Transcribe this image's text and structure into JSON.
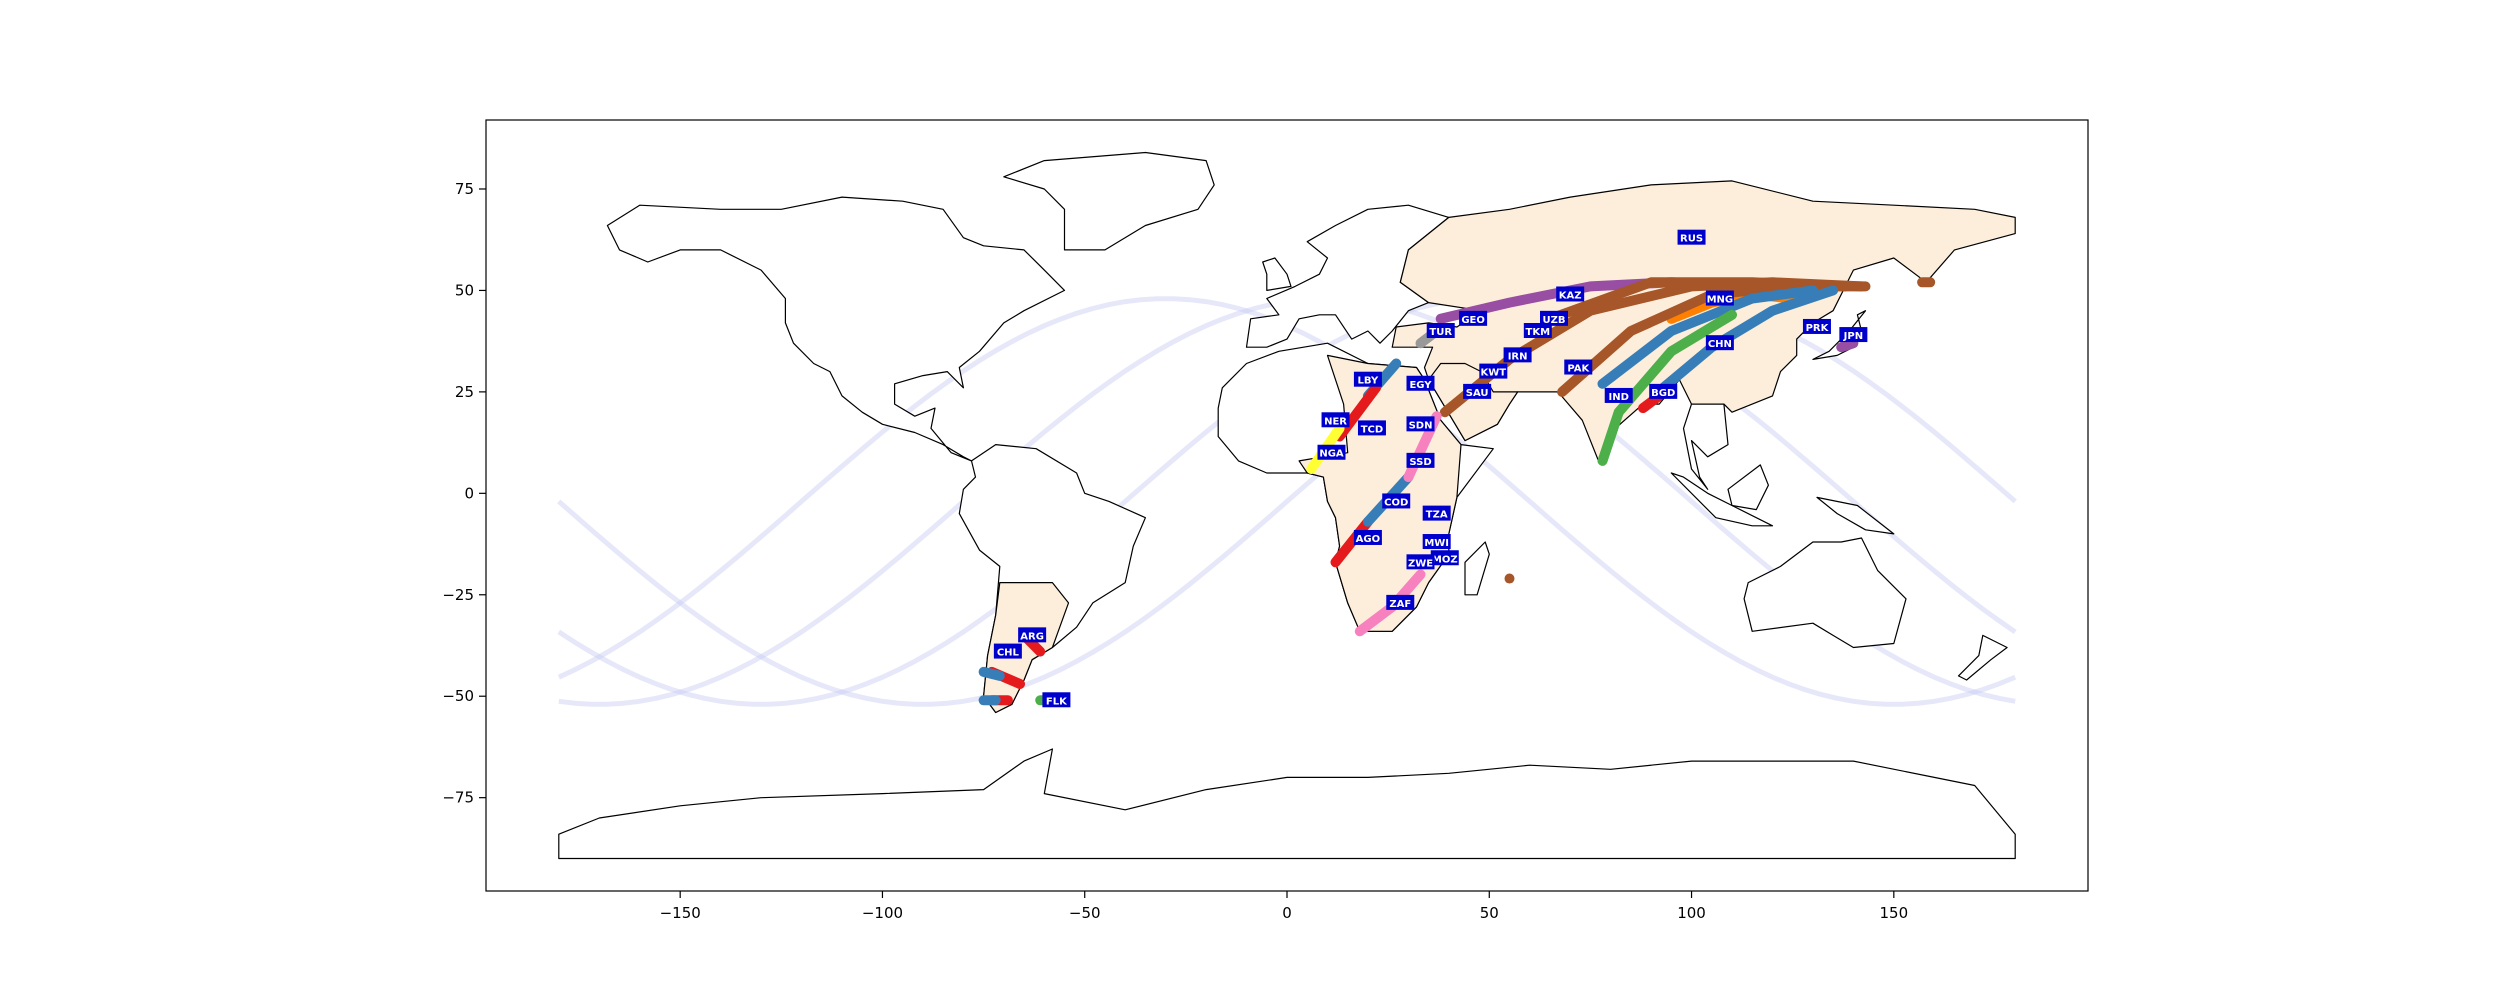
{
  "axes": {
    "x_range": [
      -198,
      198
    ],
    "y_range": [
      -98,
      92
    ],
    "x_ticks": [
      -150,
      -100,
      -50,
      0,
      50,
      100,
      150
    ],
    "y_ticks": [
      75,
      50,
      25,
      0,
      -25,
      -50,
      -75
    ],
    "x_tick_labels": [
      "−150",
      "−100",
      "−50",
      "0",
      "50",
      "100",
      "150"
    ],
    "y_tick_labels": [
      "75",
      "50",
      "25",
      "0",
      "−25",
      "−50",
      "−75"
    ]
  },
  "colors": {
    "highlight_land": "#fdeedc",
    "coastline": "#000000",
    "label_box": "#0000cc",
    "label_text": "#ffffff",
    "faint_arc": "#c8cdf5"
  },
  "country_labels": [
    {
      "code": "RUS",
      "lon": 100,
      "lat": 63
    },
    {
      "code": "KAZ",
      "lon": 70,
      "lat": 49
    },
    {
      "code": "MNG",
      "lon": 107,
      "lat": 48
    },
    {
      "code": "GEO",
      "lon": 46,
      "lat": 43
    },
    {
      "code": "UZB",
      "lon": 66,
      "lat": 43
    },
    {
      "code": "TKM",
      "lon": 62,
      "lat": 40
    },
    {
      "code": "TUR",
      "lon": 38,
      "lat": 40
    },
    {
      "code": "PRK",
      "lon": 131,
      "lat": 41
    },
    {
      "code": "JPN",
      "lon": 140,
      "lat": 39
    },
    {
      "code": "CHN",
      "lon": 107,
      "lat": 37
    },
    {
      "code": "IRN",
      "lon": 57,
      "lat": 34
    },
    {
      "code": "KWT",
      "lon": 51,
      "lat": 30
    },
    {
      "code": "PAK",
      "lon": 72,
      "lat": 31
    },
    {
      "code": "LBY",
      "lon": 20,
      "lat": 28
    },
    {
      "code": "EGY",
      "lon": 33,
      "lat": 27
    },
    {
      "code": "SAU",
      "lon": 47,
      "lat": 25
    },
    {
      "code": "IND",
      "lon": 82,
      "lat": 24
    },
    {
      "code": "BGD",
      "lon": 93,
      "lat": 25
    },
    {
      "code": "NER",
      "lon": 12,
      "lat": 18
    },
    {
      "code": "TCD",
      "lon": 21,
      "lat": 16
    },
    {
      "code": "SDN",
      "lon": 33,
      "lat": 17
    },
    {
      "code": "NGA",
      "lon": 11,
      "lat": 10
    },
    {
      "code": "SSD",
      "lon": 33,
      "lat": 8
    },
    {
      "code": "COD",
      "lon": 27,
      "lat": -2
    },
    {
      "code": "TZA",
      "lon": 37,
      "lat": -5
    },
    {
      "code": "AGO",
      "lon": 20,
      "lat": -11
    },
    {
      "code": "MWI",
      "lon": 37,
      "lat": -12
    },
    {
      "code": "MOZ",
      "lon": 39,
      "lat": -16
    },
    {
      "code": "ZWE",
      "lon": 33,
      "lat": -17
    },
    {
      "code": "ZAF",
      "lon": 28,
      "lat": -27
    },
    {
      "code": "ARG",
      "lon": -63,
      "lat": -35
    },
    {
      "code": "CHL",
      "lon": -69,
      "lat": -39
    },
    {
      "code": "FLK",
      "lon": -57,
      "lat": -51
    }
  ],
  "routes": [
    {
      "color": "#984ea3",
      "points": [
        [
          38,
          43
        ],
        [
          55,
          47
        ],
        [
          75,
          51
        ],
        [
          95,
          52
        ],
        [
          115,
          51
        ],
        [
          130,
          50
        ]
      ]
    },
    {
      "color": "#ff7f00",
      "points": [
        [
          95,
          43
        ],
        [
          105,
          47
        ],
        [
          115,
          49
        ],
        [
          125,
          48
        ]
      ]
    },
    {
      "color": "#a65628",
      "points": [
        [
          65,
          43
        ],
        [
          90,
          52
        ],
        [
          115,
          52
        ],
        [
          138,
          51
        ]
      ]
    },
    {
      "color": "#a65628",
      "points": [
        [
          39,
          20
        ],
        [
          55,
          33
        ],
        [
          75,
          45
        ],
        [
          100,
          51
        ],
        [
          120,
          52
        ],
        [
          142,
          51
        ]
      ]
    },
    {
      "color": "#a65628",
      "points": [
        [
          68,
          25
        ],
        [
          85,
          40
        ],
        [
          105,
          49
        ],
        [
          125,
          51
        ],
        [
          143,
          51
        ]
      ]
    },
    {
      "color": "#377eb8",
      "points": [
        [
          78,
          27
        ],
        [
          95,
          40
        ],
        [
          115,
          48
        ],
        [
          130,
          50
        ]
      ]
    },
    {
      "color": "#377eb8",
      "points": [
        [
          93,
          26
        ],
        [
          105,
          36
        ],
        [
          120,
          45
        ],
        [
          135,
          50
        ]
      ]
    },
    {
      "color": "#4daf4a",
      "points": [
        [
          78,
          8
        ],
        [
          82,
          20
        ],
        [
          95,
          35
        ],
        [
          110,
          44
        ]
      ]
    },
    {
      "color": "#e41a1c",
      "points": [
        [
          88,
          21
        ],
        [
          92,
          24
        ]
      ]
    },
    {
      "color": "#999999",
      "points": [
        [
          33,
          37
        ],
        [
          37,
          40
        ]
      ]
    },
    {
      "color": "#377eb8",
      "points": [
        [
          20,
          24
        ],
        [
          27,
          32
        ]
      ]
    },
    {
      "color": "#e41a1c",
      "points": [
        [
          13,
          14
        ],
        [
          22,
          26
        ]
      ]
    },
    {
      "color": "#ffff33",
      "points": [
        [
          6,
          6
        ],
        [
          13,
          16
        ]
      ]
    },
    {
      "color": "#e41a1c",
      "points": [
        [
          12,
          -17
        ],
        [
          20,
          -7
        ]
      ]
    },
    {
      "color": "#377eb8",
      "points": [
        [
          20,
          -7
        ],
        [
          30,
          4
        ]
      ]
    },
    {
      "color": "#f781bf",
      "points": [
        [
          30,
          4
        ],
        [
          37,
          19
        ]
      ]
    },
    {
      "color": "#f781bf",
      "points": [
        [
          18,
          -34
        ],
        [
          26,
          -28
        ],
        [
          33,
          -20
        ]
      ]
    },
    {
      "color": "#e41a1c",
      "points": [
        [
          -61,
          -39
        ],
        [
          -65,
          -35
        ]
      ]
    },
    {
      "color": "#e41a1c",
      "points": [
        [
          -73,
          -44
        ],
        [
          -66,
          -47
        ]
      ]
    },
    {
      "color": "#377eb8",
      "points": [
        [
          -75,
          -44
        ],
        [
          -71,
          -45
        ]
      ]
    },
    {
      "color": "#e41a1c",
      "points": [
        [
          -73,
          -51
        ],
        [
          -69,
          -51
        ]
      ]
    },
    {
      "color": "#377eb8",
      "points": [
        [
          -75,
          -51
        ],
        [
          -72,
          -51
        ]
      ]
    },
    {
      "color": "#4daf4a",
      "points": [
        [
          -61,
          -51
        ],
        [
          -59,
          -51
        ]
      ]
    },
    {
      "color": "#a65628",
      "points": [
        [
          157,
          52
        ],
        [
          159,
          52
        ]
      ]
    },
    {
      "color": "#984ea3",
      "points": [
        [
          137,
          36
        ],
        [
          140,
          37
        ]
      ]
    }
  ],
  "points": [
    {
      "color": "#a65628",
      "lon": 55,
      "lat": -21
    }
  ]
}
